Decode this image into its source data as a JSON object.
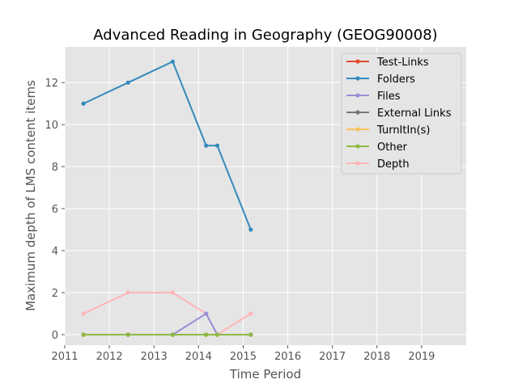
{
  "chart_data": {
    "type": "line",
    "title": "Advanced Reading in Geography (GEOG90008)",
    "xlabel": "Time Period",
    "ylabel": "Maximum depth of LMS content items",
    "xlim": [
      2011,
      2020
    ],
    "ylim": [
      -0.5,
      13.7
    ],
    "xticks": [
      2011,
      2012,
      2013,
      2014,
      2015,
      2016,
      2017,
      2018,
      2019
    ],
    "yticks": [
      0,
      2,
      4,
      6,
      8,
      10,
      12
    ],
    "grid": true,
    "legend_position": "top-right",
    "series": [
      {
        "name": "Test-Links",
        "color": "#E24A33",
        "points": [
          [
            2011.42,
            0
          ],
          [
            2012.42,
            0
          ],
          [
            2013.42,
            0
          ],
          [
            2014.17,
            0
          ],
          [
            2014.42,
            0
          ],
          [
            2015.17,
            0
          ]
        ]
      },
      {
        "name": "Folders",
        "color": "#348ABD",
        "points": [
          [
            2011.42,
            11
          ],
          [
            2012.42,
            12
          ],
          [
            2013.42,
            13
          ],
          [
            2014.17,
            9
          ],
          [
            2014.42,
            9
          ],
          [
            2015.17,
            5
          ]
        ]
      },
      {
        "name": "Files",
        "color": "#988ED5",
        "points": [
          [
            2011.42,
            0
          ],
          [
            2012.42,
            0
          ],
          [
            2013.42,
            0
          ],
          [
            2014.17,
            1
          ],
          [
            2014.42,
            0
          ],
          [
            2015.17,
            0
          ]
        ]
      },
      {
        "name": "External Links",
        "color": "#777777",
        "points": [
          [
            2011.42,
            0
          ],
          [
            2012.42,
            0
          ],
          [
            2013.42,
            0
          ],
          [
            2014.17,
            0
          ],
          [
            2014.42,
            0
          ],
          [
            2015.17,
            0
          ]
        ]
      },
      {
        "name": "TurnItIn(s)",
        "color": "#FBC15E",
        "points": [
          [
            2011.42,
            0
          ],
          [
            2012.42,
            0
          ],
          [
            2013.42,
            0
          ],
          [
            2014.17,
            0
          ],
          [
            2014.42,
            0
          ],
          [
            2015.17,
            0
          ]
        ]
      },
      {
        "name": "Other",
        "color": "#8EBA42",
        "points": [
          [
            2011.42,
            0
          ],
          [
            2012.42,
            0
          ],
          [
            2013.42,
            0
          ],
          [
            2014.17,
            0
          ],
          [
            2014.42,
            0
          ],
          [
            2015.17,
            0
          ]
        ]
      },
      {
        "name": "Depth",
        "color": "#FFB5B8",
        "points": [
          [
            2011.42,
            1
          ],
          [
            2012.42,
            2
          ],
          [
            2013.42,
            2
          ],
          [
            2014.17,
            1
          ],
          [
            2014.42,
            0
          ],
          [
            2015.17,
            1
          ]
        ]
      }
    ],
    "draw_order": [
      "Test-Links",
      "Folders",
      "External Links",
      "TurnItIn(s)",
      "Depth",
      "Files",
      "Other"
    ]
  }
}
